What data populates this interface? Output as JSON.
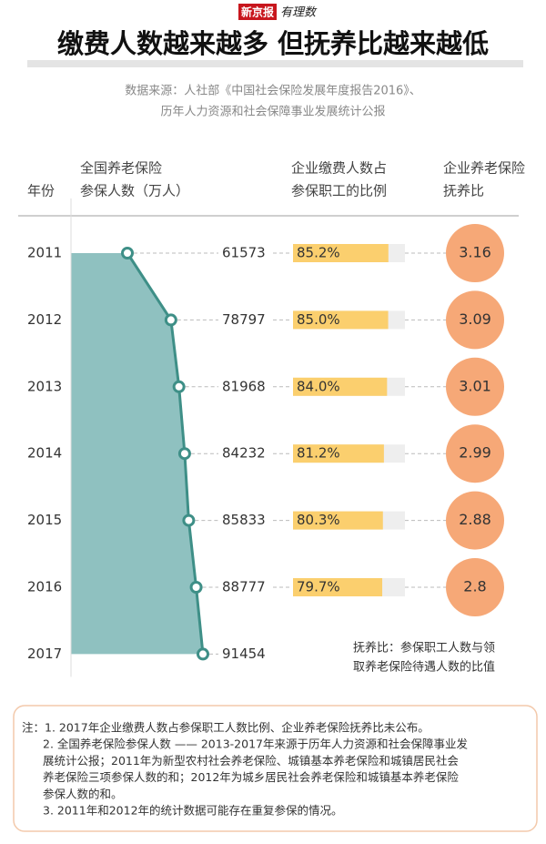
{
  "chart_data": {
    "type": "infographic",
    "logo": "新京报",
    "logo_sub": "有理数",
    "title": "缴费人数越来越多 但抚养比越来越低",
    "source": [
      "数据来源：人社部《中国社会保险发展年度报告2016》、",
      "历年人力资源和社会保障事业发展统计公报"
    ],
    "columns": [
      [
        "年份"
      ],
      [
        "全国养老保险",
        "参保人数（万人）"
      ],
      [
        "企业缴费人数占",
        "参保职工的比例"
      ],
      [
        "企业养老保险",
        "抚养比"
      ]
    ],
    "categories": [
      "2011",
      "2012",
      "2013",
      "2014",
      "2015",
      "2016",
      "2017"
    ],
    "series": [
      {
        "color": "#3e8f87",
        "fill": "#8fc1c0",
        "values": [
          61573,
          78797,
          81968,
          84232,
          85833,
          88777,
          91454
        ]
      },
      {
        "color": "#fbcf6e",
        "values": [
          85.2,
          85.0,
          84.0,
          81.2,
          80.3,
          79.7,
          null
        ],
        "value_labels": [
          "85.2%",
          "85.0%",
          "84.0%",
          "81.2%",
          "80.3%",
          "79.7%",
          null
        ]
      },
      {
        "color": "#f6a877",
        "values": [
          3.16,
          3.09,
          3.01,
          2.99,
          2.88,
          2.8,
          null
        ]
      }
    ],
    "note": [
      "抚养比：参保职工人数与领",
      "取养老保险待遇人数的比值"
    ],
    "footnotes": [
      "注：1. 2017年企业缴费人数占参保职工人数比例、企业养老保险抚养比未公布。",
      "2. 全国养老保险参保人数 —— 2013-2017年来源于历年人力资源和社会保障事业发",
      "展统计公报；2011年为新型农村社会养老保险、城镇基本养老保险和城镇居民社会",
      "养老保险三项参保人数的和；2012年为城乡居民社会养老保险和城镇基本养老保险",
      "参保人数的和。",
      "3. 2011年和2012年的统计数据可能存在重复参保的情况。"
    ]
  }
}
